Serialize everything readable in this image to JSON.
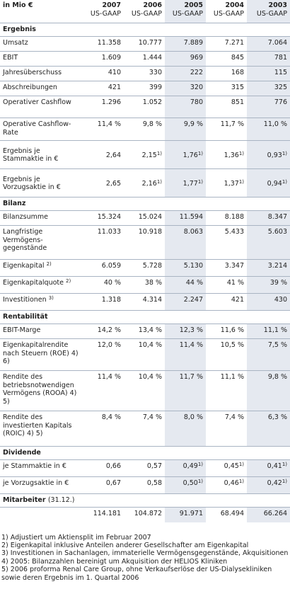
{
  "header": {
    "unit": "in Mio €",
    "years": [
      {
        "year": "2007",
        "standard": "US-GAAP"
      },
      {
        "year": "2006",
        "standard": "US-GAAP"
      },
      {
        "year": "2005",
        "standard": "US-GAAP"
      },
      {
        "year": "2004",
        "standard": "US-GAAP"
      },
      {
        "year": "2003",
        "standard": "US-GAAP"
      }
    ]
  },
  "sections": [
    {
      "title": "Ergebnis",
      "rows": [
        {
          "label": "Umsatz",
          "height": 21,
          "values": [
            "11.358",
            "10.777",
            "7.889",
            "7.271",
            "7.064"
          ]
        },
        {
          "label": "EBIT",
          "height": 21,
          "values": [
            "1.609",
            "1.444",
            "969",
            "845",
            "781"
          ]
        },
        {
          "label": "Jahresüberschuss",
          "height": 21,
          "values": [
            "410",
            "330",
            "222",
            "168",
            "115"
          ]
        },
        {
          "label": "Abschreibungen",
          "height": 21,
          "values": [
            "421",
            "399",
            "320",
            "315",
            "325"
          ]
        },
        {
          "label": "Operativer Cashflow",
          "height": 31,
          "values": [
            "1.296",
            "1.052",
            "780",
            "851",
            "776"
          ]
        },
        {
          "label": "Operative Cashflow-Rate",
          "height": 32,
          "values": [
            "11,4 %",
            "9,8 %",
            "9,9 %",
            "11,7 %",
            "11,0 %"
          ]
        },
        {
          "label": "Ergebnis je Stammaktie in €",
          "height": 40,
          "valign": "middle",
          "values": [
            "2,64",
            "2,15",
            "1,76",
            "1,36",
            "0,93"
          ],
          "notes": [
            "",
            "1)",
            "1)",
            "1)",
            "1)"
          ]
        },
        {
          "label": "Ergebnis je Vorzugsaktie in €",
          "height": 40,
          "valign": "middle",
          "values": [
            "2,65",
            "2,16",
            "1,77",
            "1,37",
            "0,94"
          ],
          "notes": [
            "",
            "1)",
            "1)",
            "1)",
            "1)"
          ]
        }
      ]
    },
    {
      "title": "Bilanz",
      "rows": [
        {
          "label": "Bilanzsumme",
          "height": 21,
          "values": [
            "15.324",
            "15.024",
            "11.594",
            "8.188",
            "8.347"
          ]
        },
        {
          "label": "Langfristige Vermögens-gegenstände",
          "height": 48,
          "values": [
            "11.033",
            "10.918",
            "8.063",
            "5.433",
            "5.603"
          ]
        },
        {
          "label": "Eigenkapital",
          "labelNote": "2)",
          "height": 24,
          "values": [
            "6.059",
            "5.728",
            "5.130",
            "3.347",
            "3.214"
          ]
        },
        {
          "label": "Eigenkapitalquote",
          "labelNote": "2)",
          "height": 24,
          "values": [
            "40 %",
            "38 %",
            "44 %",
            "41 %",
            "39 %"
          ]
        },
        {
          "label": "Investitionen",
          "labelNote": "3)",
          "height": 24,
          "values": [
            "1.318",
            "4.314",
            "2.247",
            "421",
            "430"
          ]
        }
      ]
    },
    {
      "title": "Rentabilität",
      "rows": [
        {
          "label": "EBIT-Marge",
          "height": 21,
          "values": [
            "14,2 %",
            "13,4 %",
            "12,3 %",
            "11,6 %",
            "11,1 %"
          ]
        },
        {
          "label": "Eigenkapitalrendite nach Steuern (ROE) 4) 6)",
          "height": 45,
          "values": [
            "12,0 %",
            "10,4 %",
            "11,4 %",
            "10,5 %",
            "7,5 %"
          ]
        },
        {
          "label": "Rendite des betriebsnotwendigen Vermögens (ROOA) 4) 5)",
          "height": 57,
          "values": [
            "11,4 %",
            "10,4 %",
            "11,7 %",
            "11,1 %",
            "9,8 %"
          ]
        },
        {
          "label": "Rendite des investierten Kapitals (ROIC) 4) 5)",
          "height": 50,
          "values": [
            "8,4 %",
            "7,4 %",
            "8,0 %",
            "7,4 %",
            "6,3 %"
          ]
        }
      ]
    },
    {
      "title": "Dividende",
      "rows": [
        {
          "label": "je Stammaktie in €",
          "height": 24,
          "values": [
            "0,66",
            "0,57",
            "0,49",
            "0,45",
            "0,41"
          ],
          "notes": [
            "",
            "",
            "1)",
            "1)",
            "1)"
          ]
        },
        {
          "label": "je Vorzugsaktie in €",
          "height": 24,
          "values": [
            "0,67",
            "0,58",
            "0,50",
            "0,46",
            "0,42"
          ],
          "notes": [
            "",
            "",
            "1)",
            "1)",
            "1)"
          ]
        }
      ]
    },
    {
      "title": "Mitarbeiter",
      "titleSuffix": "(31.12.)",
      "rows": [
        {
          "label": "",
          "height": 21,
          "values": [
            "114.181",
            "104.872",
            "91.971",
            "68.494",
            "66.264"
          ]
        }
      ]
    }
  ],
  "footnotes": [
    "1) Adjustiert um Aktiensplit im Februar 2007",
    "2) Eigenkapital inklusive Anteilen anderer Gesellschafter am Eigenkapital",
    "3) Investitionen in Sachanlagen, immaterielle Vermögensgegenstände, Akquisitionen",
    "4) 2005: Bilanzzahlen bereinigt um Akquisition der HELIOS Kliniken",
    "5) 2006 proforma Renal Care Group, ohne Verkaufserlöse der US-Dialysekliniken sowie deren Ergebnis im 1. Quartal 2006"
  ]
}
